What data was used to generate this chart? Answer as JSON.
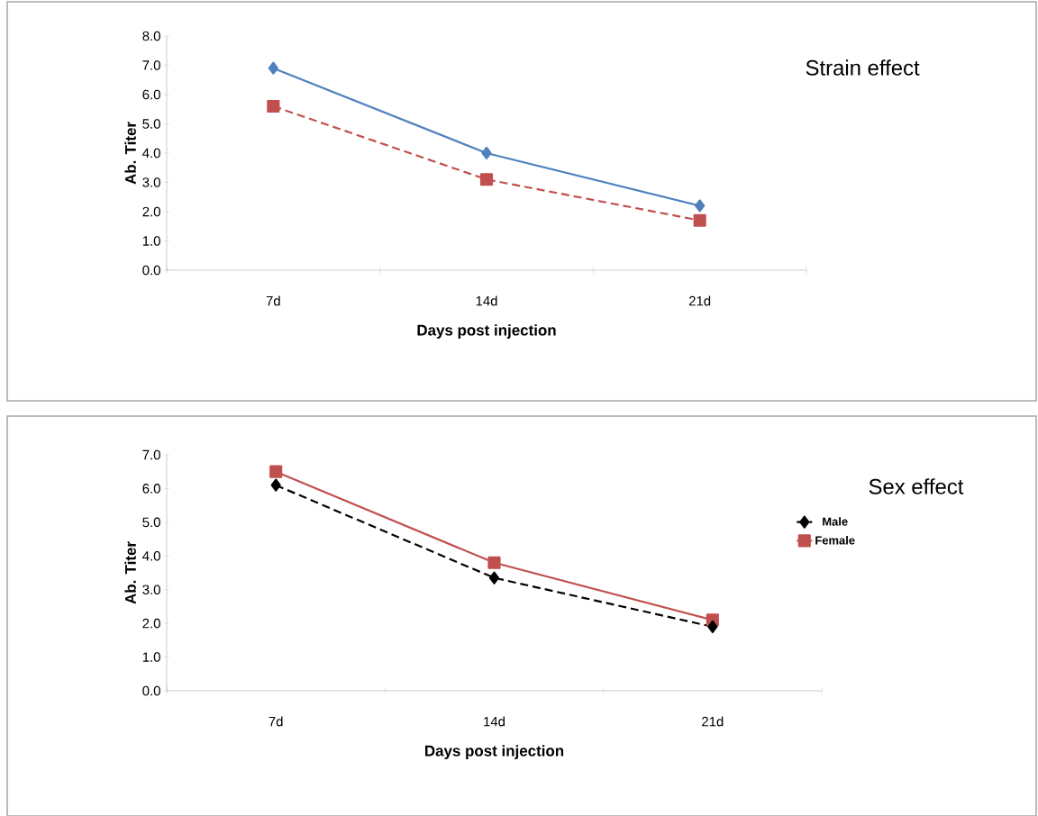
{
  "chart_data": [
    {
      "type": "line",
      "legend_title": "Strain effect",
      "xlabel": "Days post injection",
      "ylabel": "Ab. Titer",
      "categories": [
        "7d",
        "14d",
        "21d"
      ],
      "series": [
        {
          "color": "#4f81bd",
          "values": [
            6.9,
            4.0,
            2.2
          ],
          "marker": "diamond",
          "line_style": "solid"
        },
        {
          "color": "#c0504d",
          "values": [
            5.6,
            3.1,
            1.7
          ],
          "marker": "square",
          "line_style": "dashed"
        }
      ],
      "ylim": [
        0,
        8
      ],
      "yticks": [
        {
          "value": 0,
          "label": "0.0"
        },
        {
          "value": 1,
          "label": "1.0"
        },
        {
          "value": 2,
          "label": "2.0"
        },
        {
          "value": 3,
          "label": "3.0"
        },
        {
          "value": 4,
          "label": "4.0"
        },
        {
          "value": 5,
          "label": "5.0"
        },
        {
          "value": 6,
          "label": "6.0"
        },
        {
          "value": 7,
          "label": "7.0"
        },
        {
          "value": 8,
          "label": "8.0"
        }
      ],
      "grid": false,
      "legend": "right"
    },
    {
      "type": "line",
      "legend_title": "Sex effect",
      "xlabel": "Days post injection",
      "ylabel": "Ab. Titer",
      "categories": [
        "7d",
        "14d",
        "21d"
      ],
      "series": [
        {
          "name": "Male",
          "color": "#000000",
          "values": [
            6.1,
            3.35,
            1.9
          ],
          "marker": "diamond",
          "line_style": "dashed"
        },
        {
          "name": "Female",
          "color": "#c0504d",
          "values": [
            6.5,
            3.8,
            2.1
          ],
          "marker": "square",
          "line_style": "solid"
        }
      ],
      "ylim": [
        0,
        7
      ],
      "yticks": [
        {
          "value": 0,
          "label": "0.0"
        },
        {
          "value": 1,
          "label": "1.0"
        },
        {
          "value": 2,
          "label": "2.0"
        },
        {
          "value": 3,
          "label": "3.0"
        },
        {
          "value": 4,
          "label": "4.0"
        },
        {
          "value": 5,
          "label": "5.0"
        },
        {
          "value": 6,
          "label": "6.0"
        },
        {
          "value": 7,
          "label": "7.0"
        }
      ],
      "grid": false,
      "legend": "right"
    }
  ]
}
